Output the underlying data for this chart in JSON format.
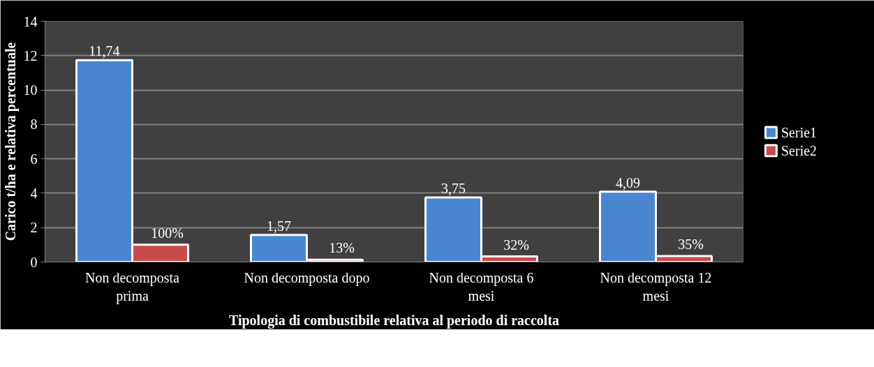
{
  "chart_data": {
    "type": "bar",
    "xlabel": "Tipologia di combustibile relativa al periodo di raccolta",
    "ylabel": "Carico t/ha e relativa percentuale",
    "categories": [
      "Non decomposta prima",
      "Non decomposta dopo",
      "Non decomposta 6 mesi",
      "Non decomposta 12 mesi"
    ],
    "series": [
      {
        "name": "Serie1",
        "color": "#4a86d0",
        "values": [
          11.74,
          1.57,
          3.75,
          4.09
        ],
        "value_labels": [
          "11,74",
          "1,57",
          "3,75",
          "4,09"
        ]
      },
      {
        "name": "Serie2",
        "color": "#c84b4b",
        "values": [
          1.0,
          0.13,
          0.32,
          0.35
        ],
        "value_labels": [
          "100%",
          "13%",
          "32%",
          "35%"
        ]
      }
    ],
    "ylim": [
      0,
      14
    ],
    "yticks": [
      0,
      2,
      4,
      6,
      8,
      10,
      12,
      14
    ],
    "grid": "y",
    "legend": "right"
  }
}
